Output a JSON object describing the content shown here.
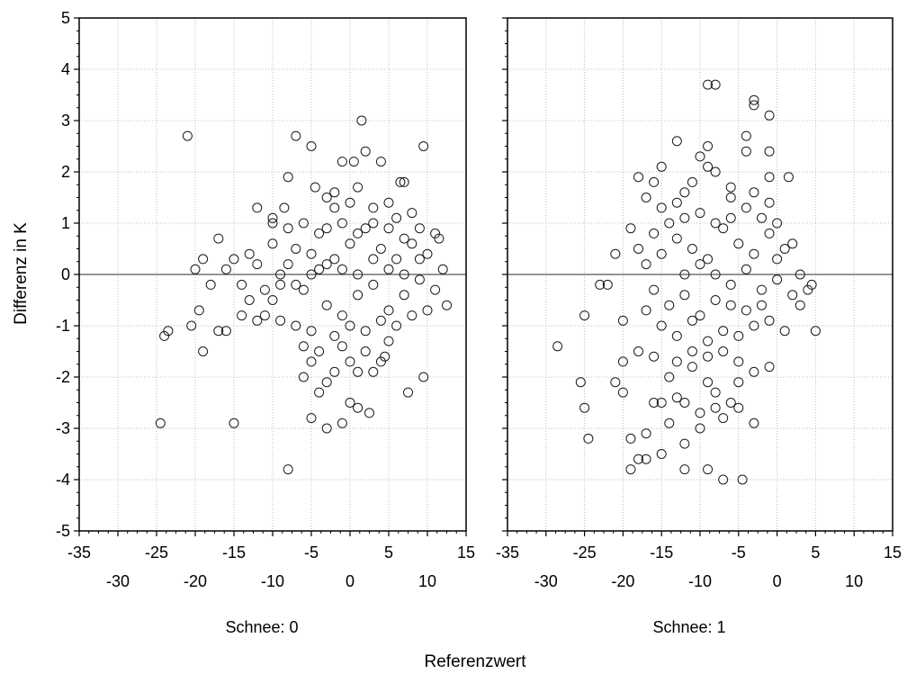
{
  "chart_data": {
    "type": "scatter",
    "xlabel": "Referenzwert",
    "ylabel": "Differenz in K",
    "xlim": [
      -35,
      15
    ],
    "ylim": [
      -5,
      5
    ],
    "x_ticks": [
      -35,
      -30,
      -25,
      -20,
      -15,
      -10,
      -5,
      0,
      5,
      10,
      15
    ],
    "y_ticks": [
      -5,
      -4,
      -3,
      -2,
      -1,
      0,
      1,
      2,
      3,
      4,
      5
    ],
    "reference_line_y": 0,
    "grid": true,
    "marker": "open-circle",
    "panels": [
      {
        "label": "Schnee: 0",
        "points": [
          [
            -21,
            2.7
          ],
          [
            -7,
            2.7
          ],
          [
            -5,
            2.5
          ],
          [
            1.5,
            3.0
          ],
          [
            9.5,
            2.5
          ],
          [
            -1,
            2.2
          ],
          [
            0.5,
            2.2
          ],
          [
            2,
            2.4
          ],
          [
            4,
            2.2
          ],
          [
            6.5,
            1.8
          ],
          [
            7,
            1.8
          ],
          [
            -8,
            1.9
          ],
          [
            -4.5,
            1.7
          ],
          [
            -3,
            1.5
          ],
          [
            -2,
            1.3
          ],
          [
            0,
            1.4
          ],
          [
            3,
            1.3
          ],
          [
            5,
            1.4
          ],
          [
            8,
            1.2
          ],
          [
            -12,
            1.3
          ],
          [
            -10,
            1.1
          ],
          [
            -8.5,
            1.3
          ],
          [
            -24.5,
            -2.9
          ],
          [
            -24,
            -1.2
          ],
          [
            -23.5,
            -1.1
          ],
          [
            -20.5,
            -1.0
          ],
          [
            -19.5,
            -0.7
          ],
          [
            -19,
            -1.5
          ],
          [
            -17,
            -1.1
          ],
          [
            -16,
            -1.1
          ],
          [
            -15,
            -2.9
          ],
          [
            -17,
            0.7
          ],
          [
            -20,
            0.1
          ],
          [
            -19,
            0.3
          ],
          [
            -18,
            -0.2
          ],
          [
            -16,
            0.1
          ],
          [
            -15,
            0.3
          ],
          [
            -14,
            -0.2
          ],
          [
            -13,
            -0.5
          ],
          [
            -8,
            -3.8
          ],
          [
            -5,
            -2.8
          ],
          [
            -3,
            -3.0
          ],
          [
            -1,
            -2.9
          ],
          [
            0,
            -2.5
          ],
          [
            1,
            -2.6
          ],
          [
            2.5,
            -2.7
          ],
          [
            7.5,
            -2.3
          ],
          [
            9.5,
            -2.0
          ],
          [
            -4,
            -2.3
          ],
          [
            -3,
            -2.1
          ],
          [
            -6,
            -2.0
          ],
          [
            -5,
            -1.7
          ],
          [
            -2,
            -1.9
          ],
          [
            0,
            -1.7
          ],
          [
            1,
            -1.9
          ],
          [
            3,
            -1.9
          ],
          [
            4,
            -1.7
          ],
          [
            5,
            -1.3
          ],
          [
            -11,
            -0.8
          ],
          [
            -10,
            -0.5
          ],
          [
            -9,
            -0.2
          ],
          [
            -8,
            0.2
          ],
          [
            -7,
            0.5
          ],
          [
            -6,
            -0.3
          ],
          [
            -5,
            0.4
          ],
          [
            -4,
            0.8
          ],
          [
            -3,
            -0.6
          ],
          [
            -2,
            0.3
          ],
          [
            -1,
            -0.8
          ],
          [
            0,
            0.6
          ],
          [
            1,
            -0.4
          ],
          [
            2,
            0.9
          ],
          [
            3,
            -0.2
          ],
          [
            4,
            0.5
          ],
          [
            5,
            -0.7
          ],
          [
            6,
            0.3
          ],
          [
            7,
            -0.4
          ],
          [
            8,
            0.6
          ],
          [
            9,
            -0.1
          ],
          [
            10,
            0.4
          ],
          [
            11,
            -0.3
          ],
          [
            11.5,
            0.7
          ],
          [
            12,
            0.1
          ],
          [
            12.5,
            -0.6
          ],
          [
            -12,
            0.2
          ],
          [
            -11,
            -0.3
          ],
          [
            -10,
            0.6
          ],
          [
            -9,
            -0.9
          ],
          [
            -8,
            0.9
          ],
          [
            -7,
            -1.0
          ],
          [
            -6,
            1.0
          ],
          [
            -5,
            -1.1
          ],
          [
            -4,
            0.1
          ],
          [
            -3,
            0.9
          ],
          [
            -2,
            -1.2
          ],
          [
            -1,
            1.0
          ],
          [
            0,
            -1.0
          ],
          [
            1,
            0.8
          ],
          [
            2,
            -1.1
          ],
          [
            3,
            1.0
          ],
          [
            4,
            -0.9
          ],
          [
            5,
            0.9
          ],
          [
            6,
            -1.0
          ],
          [
            7,
            0.7
          ],
          [
            8,
            -0.8
          ],
          [
            9,
            0.9
          ],
          [
            10,
            -0.7
          ],
          [
            11,
            0.8
          ],
          [
            -6,
            -1.4
          ],
          [
            -4,
            -1.5
          ],
          [
            -1,
            -1.4
          ],
          [
            2,
            -1.5
          ],
          [
            4.5,
            -1.6
          ],
          [
            -9,
            0.0
          ],
          [
            -7,
            -0.2
          ],
          [
            -5,
            0.0
          ],
          [
            -3,
            0.2
          ],
          [
            -1,
            0.1
          ],
          [
            1,
            0.0
          ],
          [
            3,
            0.3
          ],
          [
            5,
            0.1
          ],
          [
            7,
            0.0
          ],
          [
            9,
            0.3
          ],
          [
            -13,
            0.4
          ],
          [
            -14,
            -0.8
          ],
          [
            -12,
            -0.9
          ],
          [
            -10,
            1.0
          ],
          [
            -2,
            1.6
          ],
          [
            1,
            1.7
          ],
          [
            6,
            1.1
          ]
        ]
      },
      {
        "label": "Schnee: 1",
        "points": [
          [
            -9,
            3.7
          ],
          [
            -8,
            3.7
          ],
          [
            -3,
            3.4
          ],
          [
            -3,
            3.3
          ],
          [
            -1,
            3.1
          ],
          [
            -4,
            2.7
          ],
          [
            -4,
            2.4
          ],
          [
            -1,
            2.4
          ],
          [
            -13,
            2.6
          ],
          [
            -10,
            2.3
          ],
          [
            -9,
            2.1
          ],
          [
            -8,
            2.0
          ],
          [
            -9,
            2.5
          ],
          [
            -15,
            2.1
          ],
          [
            -16,
            1.8
          ],
          [
            -18,
            1.9
          ],
          [
            -11,
            1.8
          ],
          [
            -12,
            1.6
          ],
          [
            -6,
            1.7
          ],
          [
            -1,
            1.9
          ],
          [
            1.5,
            1.9
          ],
          [
            -28.5,
            -1.4
          ],
          [
            -25.5,
            -2.1
          ],
          [
            -25,
            -2.6
          ],
          [
            -24.5,
            -3.2
          ],
          [
            -25,
            -0.8
          ],
          [
            -23,
            -0.2
          ],
          [
            -22,
            -0.2
          ],
          [
            -21,
            -2.1
          ],
          [
            -20,
            -1.7
          ],
          [
            -20,
            -2.3
          ],
          [
            -19,
            -3.8
          ],
          [
            -19,
            -3.2
          ],
          [
            -18,
            -3.6
          ],
          [
            -17,
            -3.6
          ],
          [
            -17,
            -3.1
          ],
          [
            -15,
            -3.5
          ],
          [
            -14,
            -2.9
          ],
          [
            -16,
            -2.5
          ],
          [
            -15,
            -2.5
          ],
          [
            -13,
            -2.4
          ],
          [
            -12,
            -2.5
          ],
          [
            -12,
            -3.3
          ],
          [
            -12,
            -3.8
          ],
          [
            -9,
            -3.8
          ],
          [
            -7,
            -4.0
          ],
          [
            -4.5,
            -4.0
          ],
          [
            -10,
            -2.7
          ],
          [
            -10,
            -3.0
          ],
          [
            -8,
            -2.6
          ],
          [
            -7,
            -2.8
          ],
          [
            -6,
            -2.5
          ],
          [
            -5,
            -2.6
          ],
          [
            -3,
            -2.9
          ],
          [
            -3,
            -1.9
          ],
          [
            -1,
            -1.8
          ],
          [
            -5,
            -2.1
          ],
          [
            -9,
            -2.1
          ],
          [
            -11,
            -1.8
          ],
          [
            -13,
            -1.7
          ],
          [
            -16,
            -1.6
          ],
          [
            -18,
            -1.5
          ],
          [
            -20,
            -0.9
          ],
          [
            -21,
            0.4
          ],
          [
            -19,
            0.9
          ],
          [
            -18,
            0.5
          ],
          [
            -17,
            0.2
          ],
          [
            -16,
            -0.3
          ],
          [
            -15,
            0.4
          ],
          [
            -14,
            -0.6
          ],
          [
            -13,
            0.7
          ],
          [
            -12,
            -0.4
          ],
          [
            -11,
            0.5
          ],
          [
            -10,
            -0.8
          ],
          [
            -9,
            0.3
          ],
          [
            -8,
            -0.5
          ],
          [
            -7,
            0.9
          ],
          [
            -6,
            -0.2
          ],
          [
            -5,
            0.6
          ],
          [
            -4,
            -0.7
          ],
          [
            -3,
            0.4
          ],
          [
            -2,
            -0.3
          ],
          [
            -1,
            0.8
          ],
          [
            0,
            -0.1
          ],
          [
            1,
            0.5
          ],
          [
            2,
            -0.4
          ],
          [
            3,
            0.0
          ],
          [
            4,
            -0.3
          ],
          [
            4.5,
            -0.2
          ],
          [
            5,
            -1.1
          ],
          [
            -17,
            -0.7
          ],
          [
            -16,
            0.8
          ],
          [
            -15,
            -1.0
          ],
          [
            -14,
            1.0
          ],
          [
            -13,
            -1.2
          ],
          [
            -12,
            1.1
          ],
          [
            -11,
            -0.9
          ],
          [
            -10,
            1.2
          ],
          [
            -9,
            -1.3
          ],
          [
            -8,
            1.0
          ],
          [
            -7,
            -1.1
          ],
          [
            -6,
            1.1
          ],
          [
            -5,
            -1.2
          ],
          [
            -4,
            1.3
          ],
          [
            -3,
            -1.0
          ],
          [
            -2,
            1.1
          ],
          [
            -1,
            -0.9
          ],
          [
            0,
            1.0
          ],
          [
            1,
            -1.1
          ],
          [
            2,
            0.6
          ],
          [
            3,
            -0.6
          ],
          [
            -12,
            0.0
          ],
          [
            -10,
            0.2
          ],
          [
            -8,
            0.0
          ],
          [
            -6,
            -0.6
          ],
          [
            -4,
            0.1
          ],
          [
            -2,
            -0.6
          ],
          [
            0,
            0.3
          ],
          [
            -11,
            -1.5
          ],
          [
            -9,
            -1.6
          ],
          [
            -7,
            -1.5
          ],
          [
            -5,
            -1.7
          ],
          [
            -14,
            -2.0
          ],
          [
            -8,
            -2.3
          ],
          [
            -6,
            1.5
          ],
          [
            -3,
            1.6
          ],
          [
            -1,
            1.4
          ],
          [
            -17,
            1.5
          ],
          [
            -15,
            1.3
          ],
          [
            -13,
            1.4
          ]
        ]
      }
    ]
  }
}
